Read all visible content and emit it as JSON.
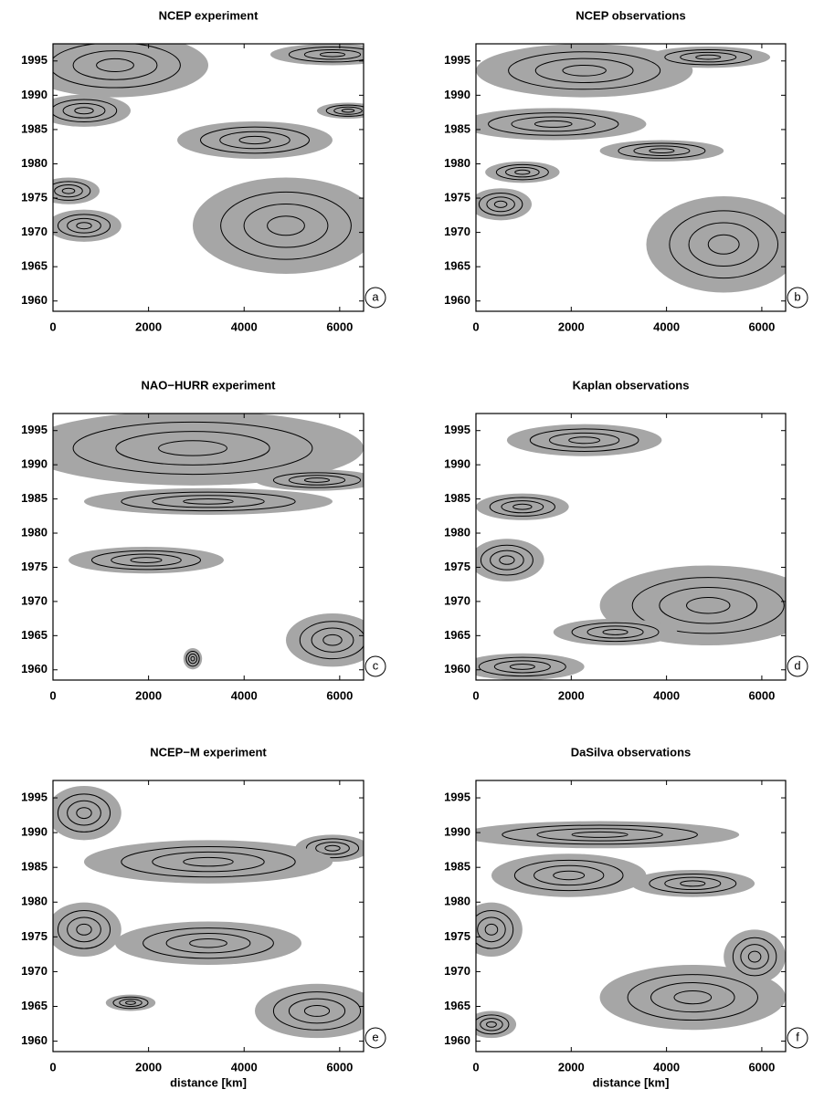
{
  "chart_data": [
    {
      "type": "contour",
      "title": "NCEP experiment",
      "panel_label": "a",
      "xlim": [
        0,
        6500
      ],
      "ylim": [
        1958.5,
        1997.5
      ],
      "xticks": [
        0,
        2000,
        4000,
        6000
      ],
      "yticks": [
        1960,
        1965,
        1970,
        1975,
        1980,
        1985,
        1990,
        1995
      ]
    },
    {
      "type": "contour",
      "title": "NCEP observations",
      "panel_label": "b",
      "xlim": [
        0,
        6500
      ],
      "ylim": [
        1958.5,
        1997.5
      ],
      "xticks": [
        0,
        2000,
        4000,
        6000
      ],
      "yticks": [
        1960,
        1965,
        1970,
        1975,
        1980,
        1985,
        1990,
        1995
      ]
    },
    {
      "type": "contour",
      "title": "NAO−HURR experiment",
      "panel_label": "c",
      "xlim": [
        0,
        6500
      ],
      "ylim": [
        1958.5,
        1997.5
      ],
      "xticks": [
        0,
        2000,
        4000,
        6000
      ],
      "yticks": [
        1960,
        1965,
        1970,
        1975,
        1980,
        1985,
        1990,
        1995
      ]
    },
    {
      "type": "contour",
      "title": "Kaplan observations",
      "panel_label": "d",
      "xlim": [
        0,
        6500
      ],
      "ylim": [
        1958.5,
        1997.5
      ],
      "xticks": [
        0,
        2000,
        4000,
        6000
      ],
      "yticks": [
        1960,
        1965,
        1970,
        1975,
        1980,
        1985,
        1990,
        1995
      ]
    },
    {
      "type": "contour",
      "title": "NCEP−M experiment",
      "panel_label": "e",
      "xlabel": "distance [km]",
      "xlim": [
        0,
        6500
      ],
      "ylim": [
        1958.5,
        1997.5
      ],
      "xticks": [
        0,
        2000,
        4000,
        6000
      ],
      "yticks": [
        1960,
        1965,
        1970,
        1975,
        1980,
        1985,
        1990,
        1995
      ]
    },
    {
      "type": "contour",
      "title": "DaSilva observations",
      "panel_label": "f",
      "xlabel": "distance [km]",
      "xlim": [
        0,
        6500
      ],
      "ylim": [
        1958.5,
        1997.5
      ],
      "xticks": [
        0,
        2000,
        4000,
        6000
      ],
      "yticks": [
        1960,
        1965,
        1970,
        1975,
        1980,
        1985,
        1990,
        1995
      ]
    }
  ]
}
